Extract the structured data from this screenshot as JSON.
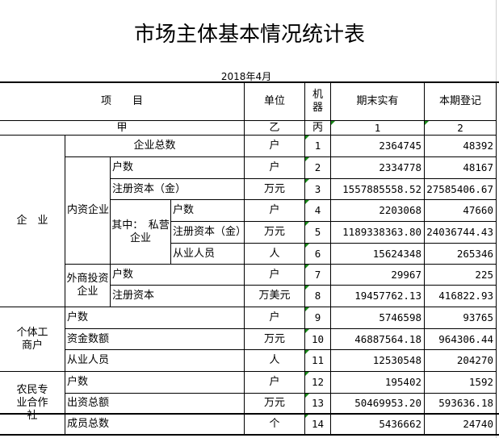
{
  "title": "市场主体基本情况统计表",
  "date": "2018年4月",
  "header": {
    "item": "项　　目",
    "unit": "单位",
    "code": "机\n器",
    "end": "期末实有",
    "current": "本期登记",
    "item_sub": "甲",
    "unit_sub": "乙",
    "code_sub": "丙",
    "end_sub": "1",
    "current_sub": "2"
  },
  "groups": {
    "enterprise": "企　业",
    "domestic": "内资企业",
    "private": "其中：　私营企业",
    "foreign": "外商投资企业",
    "individual": "个体工商户",
    "coop": "农民专业合作社"
  },
  "rows": [
    {
      "label": "企业总数",
      "unit": "户",
      "code": "1",
      "end": "2364745",
      "current": "48392"
    },
    {
      "label": "户数",
      "unit": "户",
      "code": "2",
      "end": "2334778",
      "current": "48167"
    },
    {
      "label": "注册资本（金）",
      "unit": "万元",
      "code": "3",
      "end": "1557885558.52",
      "current": "27585406.67"
    },
    {
      "label": "户数",
      "unit": "户",
      "code": "4",
      "end": "2203068",
      "current": "47660"
    },
    {
      "label": "注册资本（金）",
      "unit": "万元",
      "code": "5",
      "end": "1189338363.80",
      "current": "24036744.43"
    },
    {
      "label": "从业人员",
      "unit": "人",
      "code": "6",
      "end": "15624348",
      "current": "265346"
    },
    {
      "label": "户数",
      "unit": "户",
      "code": "7",
      "end": "29967",
      "current": "225"
    },
    {
      "label": "注册资本",
      "unit": "万美元",
      "code": "8",
      "end": "19457762.13",
      "current": "416822.93"
    },
    {
      "label": "户数",
      "unit": "户",
      "code": "9",
      "end": "5746598",
      "current": "93765"
    },
    {
      "label": "资金数额",
      "unit": "万元",
      "code": "10",
      "end": "46887564.18",
      "current": "964306.44"
    },
    {
      "label": "从业人员",
      "unit": "人",
      "code": "11",
      "end": "12530548",
      "current": "204270"
    },
    {
      "label": "户数",
      "unit": "户",
      "code": "12",
      "end": "195402",
      "current": "1592"
    },
    {
      "label": "出资总额",
      "unit": "万元",
      "code": "13",
      "end": "50469953.20",
      "current": "593636.18"
    },
    {
      "label": "成员总数",
      "unit": "个",
      "code": "14",
      "end": "5436662",
      "current": "24740"
    }
  ]
}
